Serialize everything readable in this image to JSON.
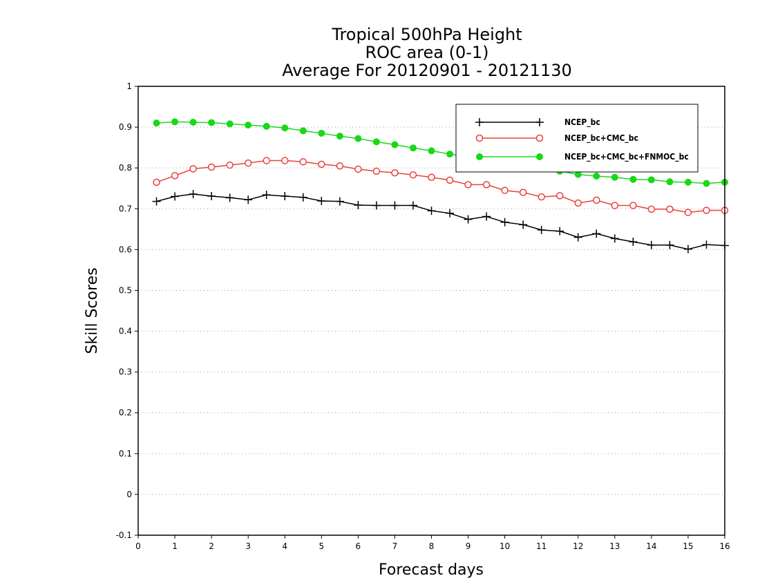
{
  "chart_data": {
    "type": "line",
    "title": [
      "Tropical 500hPa Height",
      "ROC area (0-1)",
      "Average For 20120901 - 20121130"
    ],
    "xlabel": "Forecast days",
    "ylabel": "Skill Scores",
    "xlim": [
      0,
      16
    ],
    "ylim": [
      -0.1,
      1
    ],
    "xticks": [
      0,
      1,
      2,
      3,
      4,
      5,
      6,
      7,
      8,
      9,
      10,
      11,
      12,
      13,
      14,
      15,
      16
    ],
    "yticks": [
      -0.1,
      0,
      0.1,
      0.2,
      0.3,
      0.4,
      0.5,
      0.6,
      0.7,
      0.8,
      0.9,
      1
    ],
    "ytick_labels": [
      "-0.1",
      "0",
      "0.1",
      "0.2",
      "0.3",
      "0.4",
      "0.5",
      "0.6",
      "0.7",
      "0.8",
      "0.9",
      "1"
    ],
    "grid": "horizontal-dotted",
    "legend_position": "top-right",
    "x": [
      0.5,
      1,
      1.5,
      2,
      2.5,
      3,
      3.5,
      4,
      4.5,
      5,
      5.5,
      6,
      6.5,
      7,
      7.5,
      8,
      8.5,
      9,
      9.5,
      10,
      10.5,
      11,
      11.5,
      12,
      12.5,
      13,
      13.5,
      14,
      14.5,
      15,
      15.5,
      16
    ],
    "series": [
      {
        "name": "NCEP_bc",
        "color": "#000000",
        "marker": "plus",
        "values": [
          0.718,
          0.73,
          0.736,
          0.731,
          0.727,
          0.722,
          0.734,
          0.731,
          0.728,
          0.719,
          0.718,
          0.709,
          0.708,
          0.708,
          0.708,
          0.695,
          0.689,
          0.674,
          0.681,
          0.667,
          0.661,
          0.648,
          0.645,
          0.63,
          0.639,
          0.627,
          0.619,
          0.611,
          0.611,
          0.601,
          0.612,
          0.61
        ]
      },
      {
        "name": "NCEP_bc+CMC_bc",
        "color": "#e8403c",
        "marker": "open-circle",
        "values": [
          0.765,
          0.781,
          0.798,
          0.802,
          0.807,
          0.812,
          0.818,
          0.818,
          0.815,
          0.809,
          0.805,
          0.797,
          0.792,
          0.788,
          0.783,
          0.777,
          0.77,
          0.759,
          0.759,
          0.745,
          0.74,
          0.729,
          0.732,
          0.714,
          0.721,
          0.708,
          0.708,
          0.699,
          0.699,
          0.691,
          0.696,
          0.696
        ]
      },
      {
        "name": "NCEP_bc+CMC_bc+FNMOC_bc",
        "color": "#18d818",
        "marker": "filled-circle",
        "values": [
          0.91,
          0.913,
          0.912,
          0.911,
          0.908,
          0.905,
          0.902,
          0.898,
          0.891,
          0.885,
          0.878,
          0.872,
          0.864,
          0.857,
          0.849,
          0.842,
          0.834,
          0.827,
          0.819,
          0.812,
          0.805,
          0.798,
          0.792,
          0.784,
          0.78,
          0.777,
          0.772,
          0.771,
          0.766,
          0.765,
          0.762,
          0.765
        ]
      }
    ]
  }
}
